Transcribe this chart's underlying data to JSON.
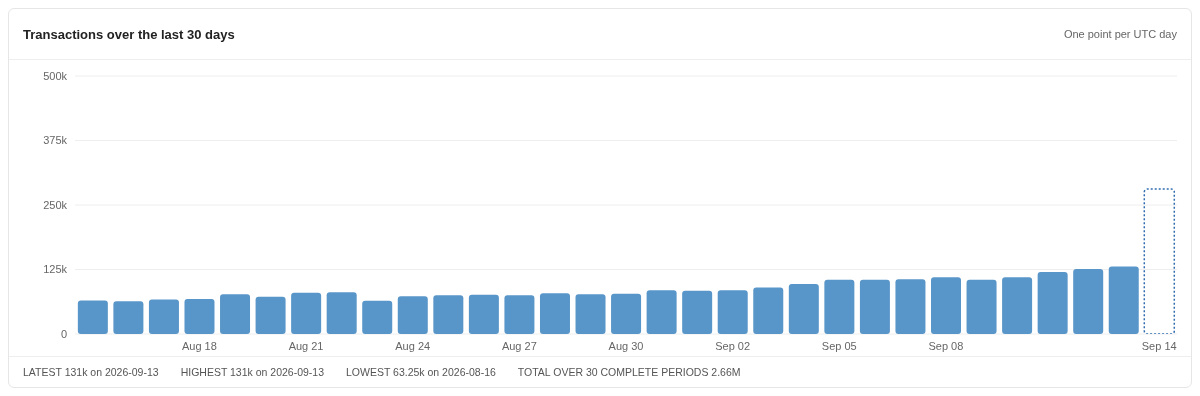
{
  "chart_data": {
    "type": "bar",
    "title": "Transactions over the last 30 days",
    "subtitle": "One point per UTC day",
    "categories": [
      null,
      null,
      null,
      "Aug 18",
      null,
      null,
      "Aug 21",
      null,
      null,
      "Aug 24",
      null,
      null,
      "Aug 27",
      null,
      null,
      "Aug 30",
      null,
      null,
      "Sep 02",
      null,
      null,
      "Sep 05",
      null,
      null,
      "Sep 08",
      null,
      null,
      null,
      null,
      null,
      "Sep 14"
    ],
    "series": [
      {
        "color": "#5895c8",
        "values": [
          65000,
          63250,
          67000,
          68000,
          77000,
          72000,
          80000,
          81000,
          64500,
          73000,
          75000,
          76000,
          75000,
          79000,
          77000,
          78000,
          85000,
          84000,
          85000,
          90000,
          97000,
          105000,
          105000,
          106000,
          110000,
          105000,
          110000,
          120000,
          126000,
          131000,
          null
        ]
      },
      {
        "color": "#2f6db0",
        "line_style": "dotted",
        "values": [
          null,
          null,
          null,
          null,
          null,
          null,
          null,
          null,
          null,
          null,
          null,
          null,
          null,
          null,
          null,
          null,
          null,
          null,
          null,
          null,
          null,
          null,
          null,
          null,
          null,
          null,
          null,
          null,
          null,
          null,
          281000
        ]
      }
    ],
    "stacked": true,
    "ylim": [
      0,
      500000
    ],
    "yticks": [
      0,
      {
        "value": 125000,
        "label": "125k"
      },
      {
        "value": 250000,
        "label": "250k"
      },
      {
        "value": 375000,
        "label": "375k"
      },
      {
        "value": 500000,
        "label": "500k"
      }
    ],
    "grid": "y",
    "legend": false,
    "annotations": [
      "LATEST 131k on 2026-09-13",
      "HIGHEST 131k on 2026-09-13",
      "LOWEST 63.25k on 2026-08-16",
      "TOTAL OVER 30 COMPLETE PERIODS 2.66M"
    ]
  }
}
